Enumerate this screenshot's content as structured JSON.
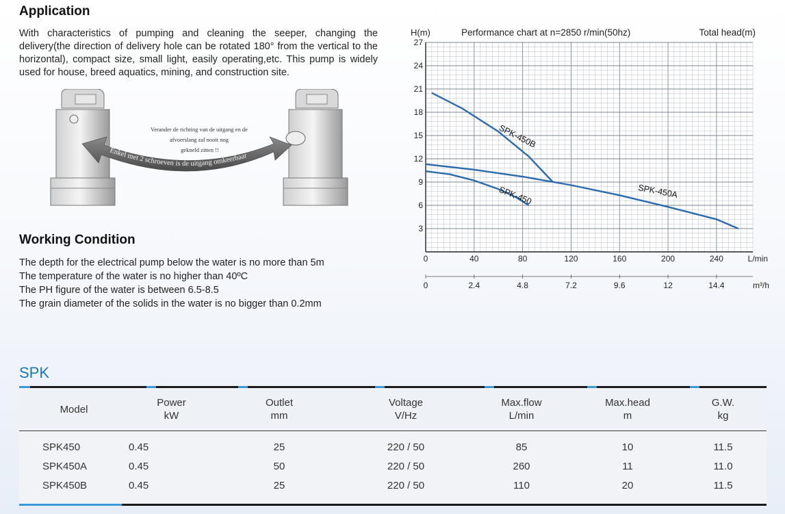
{
  "application": {
    "heading": "Application",
    "text": "With characteristics of pumping and cleaning the seeper, changing the delivery(the direction of delivery hole can be rotated 180° from the vertical to the horizontal), compact size, small light, easily operating,etc. This pump is widely used for house, breed aquatics, mining, and construction site."
  },
  "illustration": {
    "note_lines": [
      "Verander de richting van de uitgang en de",
      "afvoerslang zal nooit nog",
      "gekneld zitten !!"
    ],
    "arrow_text": "Enkel met 2 schroeven is de uitgang omkeerbaar"
  },
  "working": {
    "heading": "Working Condition",
    "items": [
      "The depth for the electrical pump below the water is no more than 5m",
      "The temperature of the water is no higher than 40ºC",
      "The PH figure of the water is between 6.5-8.5",
      "The grain diameter of the solids in the water is no bigger than 0.2mm"
    ]
  },
  "chart_data": {
    "type": "line",
    "title": "Performance chart at n=2850 r/min(50hz)",
    "ylabel": "H(m)",
    "ylabel_right": "Total head(m)",
    "xlabel": "L/min",
    "xlabel2": "m³/h",
    "xlim": [
      0,
      270
    ],
    "ylim": [
      0,
      27
    ],
    "x_ticks": [
      0,
      40,
      80,
      120,
      160,
      200,
      240
    ],
    "y_ticks": [
      3,
      6,
      9,
      12,
      15,
      18,
      21,
      24,
      27
    ],
    "x2_ticks": [
      "0",
      "2.4",
      "4.8",
      "7.2",
      "9.6",
      "12",
      "14.4"
    ],
    "series": [
      {
        "name": "SPK-450B",
        "x": [
          5,
          30,
          60,
          85,
          105
        ],
        "y": [
          20.5,
          18.5,
          15.5,
          12.3,
          9
        ]
      },
      {
        "name": "SPK-450A",
        "x": [
          0,
          40,
          80,
          120,
          160,
          200,
          240,
          258
        ],
        "y": [
          11.3,
          10.6,
          9.7,
          8.6,
          7.3,
          5.8,
          4.2,
          3
        ]
      },
      {
        "name": "SPK-450",
        "x": [
          0,
          20,
          40,
          60,
          75,
          85
        ],
        "y": [
          10.4,
          10,
          9.2,
          8.1,
          7,
          6
        ]
      }
    ],
    "colors": {
      "line": "#2a6aad",
      "grid": "#9aa3ad",
      "axis": "#222222"
    }
  },
  "table": {
    "title": "SPK",
    "headers": [
      [
        "Model"
      ],
      [
        "Power",
        "kW"
      ],
      [
        "Outlet",
        "mm"
      ],
      [
        "Voltage",
        "V/Hz"
      ],
      [
        "Max.flow",
        "L/min"
      ],
      [
        "Max.head",
        "m"
      ],
      [
        "G.W.",
        "kg"
      ]
    ],
    "rows": [
      [
        "SPK450",
        "0.45",
        "25",
        "220 / 50",
        "85",
        "10",
        "11.5"
      ],
      [
        "SPK450A",
        "0.45",
        "50",
        "220 / 50",
        "260",
        "11",
        "11.0"
      ],
      [
        "SPK450B",
        "0.45",
        "25",
        "220 / 50",
        "110",
        "20",
        "11.5"
      ]
    ],
    "accent": "#3a9ad9"
  }
}
